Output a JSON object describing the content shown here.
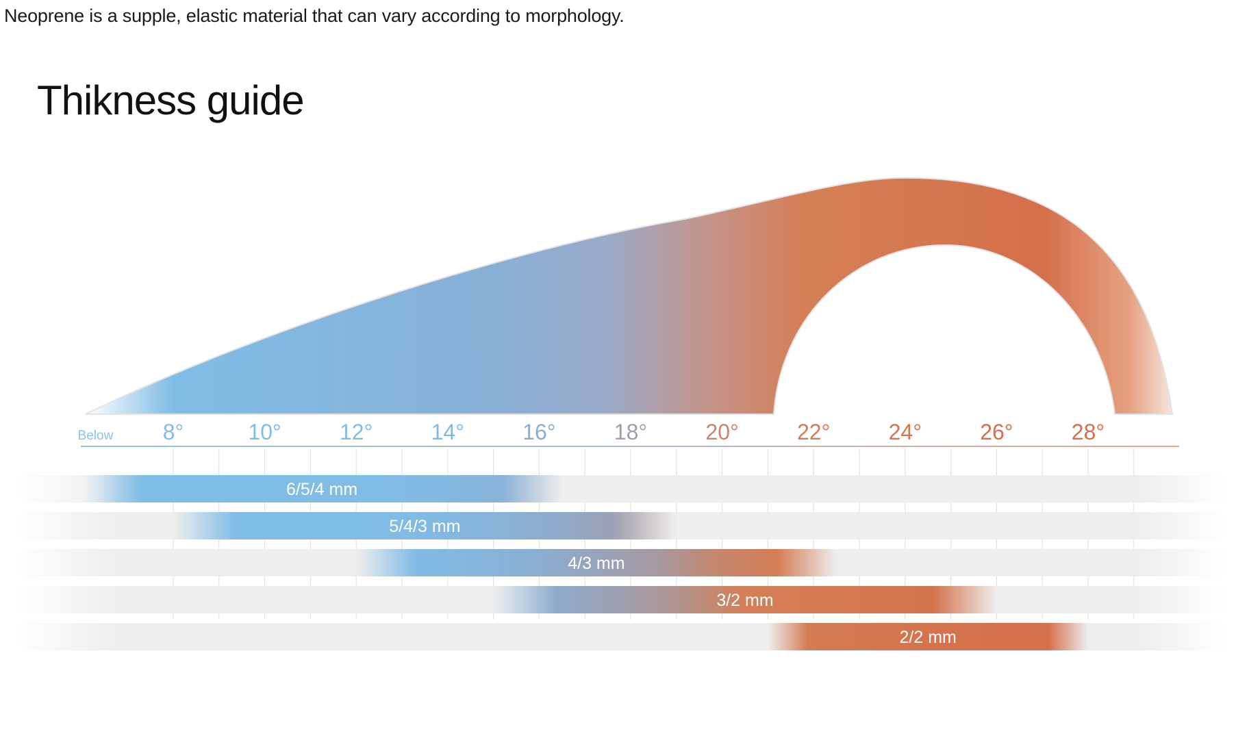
{
  "intro": "Neoprene is a supple, elastic material that can vary according to morphology.",
  "title": "Thikness guide",
  "colors": {
    "cold": "#7fbde6",
    "cool": "#8aaed3",
    "mid": "#a59aa3",
    "warm": "#d47f55",
    "hot": "#d4704a",
    "track": "#eeeeee",
    "tick": "#e2e2e2"
  },
  "chart_data": {
    "type": "bar",
    "xlabel": "",
    "ylabel": "",
    "xlim": [
      6,
      32
    ],
    "temperature_labels": [
      {
        "value": 6.3,
        "label": "Below"
      },
      {
        "value": 8,
        "label": "8°"
      },
      {
        "value": 10,
        "label": "10°"
      },
      {
        "value": 12,
        "label": "12°"
      },
      {
        "value": 14,
        "label": "14°"
      },
      {
        "value": 16,
        "label": "16°"
      },
      {
        "value": 18,
        "label": "18°"
      },
      {
        "value": 20,
        "label": "20°"
      },
      {
        "value": 22,
        "label": "22°"
      },
      {
        "value": 24,
        "label": "24°"
      },
      {
        "value": 26,
        "label": "26°"
      },
      {
        "value": 28,
        "label": "28°"
      }
    ],
    "series": [
      {
        "label": "6/5/4 mm",
        "from": 6,
        "to": 16.5
      },
      {
        "label": "5/4/3 mm",
        "from": 8,
        "to": 19
      },
      {
        "label": "4/3 mm",
        "from": 12,
        "to": 22.5
      },
      {
        "label": "3/2 mm",
        "from": 15,
        "to": 26
      },
      {
        "label": "2/2 mm",
        "from": 21,
        "to": 28
      }
    ]
  }
}
